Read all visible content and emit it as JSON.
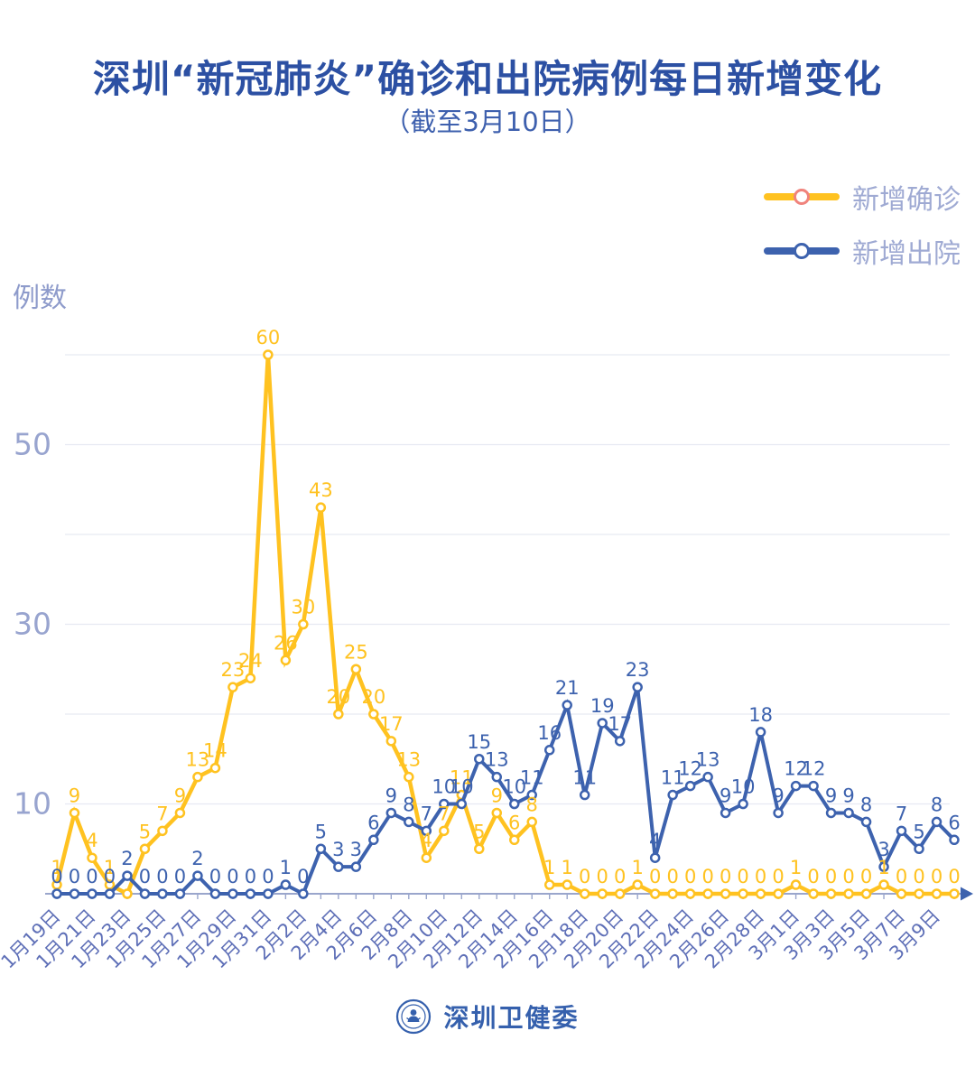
{
  "header": {
    "title": "深圳“新冠肺炎”确诊和出院病例每日新增变化",
    "subtitle": "（截至3月10日）"
  },
  "legend": {
    "items": [
      {
        "label": "新增确诊"
      },
      {
        "label": "新增出院"
      }
    ]
  },
  "axes": {
    "y_title": "例数"
  },
  "footer": {
    "org_name": "深圳卫健委"
  },
  "colors": {
    "title_blue": "#2C50A3",
    "subtitle_blue": "#3E60AE",
    "confirmed_yellow": "#FFC220",
    "discharged_blue": "#3D62AE",
    "legend_text": "#9FAAD3",
    "legend_circle_confirmed_stroke": "#F0837C",
    "legend_circle_discharged_stroke": "#3D62AE",
    "x_label": "#5E6FB7",
    "y_label": "#98A4CF",
    "gridline": "#E7E9F2",
    "axis_line": "#9AA6CC",
    "axis_arrow": "#3D62AE"
  },
  "chart_data": {
    "type": "line",
    "title": "深圳“新冠肺炎”确诊和出院病例每日新增变化",
    "subtitle": "（截至3月10日）",
    "ylabel": "例数",
    "ylim": [
      0,
      60
    ],
    "y_ticks": [
      10,
      30,
      50
    ],
    "gridline_values": [
      10,
      20,
      30,
      40,
      50,
      60
    ],
    "grid": true,
    "legend_position": "top-right",
    "point_labels": true,
    "x": [
      "1月19日",
      "1月20日",
      "1月21日",
      "1月22日",
      "1月23日",
      "1月24日",
      "1月25日",
      "1月26日",
      "1月27日",
      "1月28日",
      "1月29日",
      "1月30日",
      "1月31日",
      "2月1日",
      "2月2日",
      "2月3日",
      "2月4日",
      "2月5日",
      "2月6日",
      "2月7日",
      "2月8日",
      "2月9日",
      "2月10日",
      "2月11日",
      "2月12日",
      "2月13日",
      "2月14日",
      "2月15日",
      "2月16日",
      "2月17日",
      "2月18日",
      "2月19日",
      "2月20日",
      "2月21日",
      "2月22日",
      "2月23日",
      "2月24日",
      "2月25日",
      "2月26日",
      "2月27日",
      "2月28日",
      "2月29日",
      "3月1日",
      "3月2日",
      "3月3日",
      "3月4日",
      "3月5日",
      "3月6日",
      "3月7日",
      "3月8日",
      "3月9日",
      "3月10日"
    ],
    "x_tick_labels": [
      "1月19日",
      "1月21日",
      "1月23日",
      "1月25日",
      "1月27日",
      "1月29日",
      "1月31日",
      "2月2日",
      "2月4日",
      "2月6日",
      "2月8日",
      "2月10日",
      "2月12日",
      "2月14日",
      "2月16日",
      "2月18日",
      "2月20日",
      "2月22日",
      "2月24日",
      "2月26日",
      "2月28日",
      "3月1日",
      "3月3日",
      "3月5日",
      "3月7日",
      "3月9日"
    ],
    "series": [
      {
        "name": "新增确诊",
        "color": "#FFC220",
        "marker": "open-circle",
        "line_width": 4.5,
        "hidden_label_indices": [
          4
        ],
        "values": [
          1,
          9,
          4,
          1,
          0,
          5,
          7,
          9,
          13,
          14,
          23,
          24,
          60,
          26,
          30,
          43,
          20,
          25,
          20,
          17,
          13,
          4,
          7,
          11,
          5,
          9,
          6,
          8,
          1,
          1,
          0,
          0,
          0,
          1,
          0,
          0,
          0,
          0,
          0,
          0,
          0,
          0,
          1,
          0,
          0,
          0,
          0,
          1,
          0,
          0,
          0,
          0
        ]
      },
      {
        "name": "新增出院",
        "color": "#3D62AE",
        "marker": "open-circle",
        "line_width": 4,
        "hidden_label_indices": [],
        "values": [
          0,
          0,
          0,
          0,
          2,
          0,
          0,
          0,
          2,
          0,
          0,
          0,
          0,
          1,
          0,
          5,
          3,
          3,
          6,
          9,
          8,
          7,
          10,
          10,
          15,
          13,
          10,
          11,
          16,
          21,
          11,
          19,
          17,
          23,
          4,
          11,
          12,
          13,
          9,
          10,
          18,
          9,
          12,
          12,
          9,
          9,
          8,
          3,
          7,
          5,
          8,
          6
        ]
      }
    ]
  }
}
